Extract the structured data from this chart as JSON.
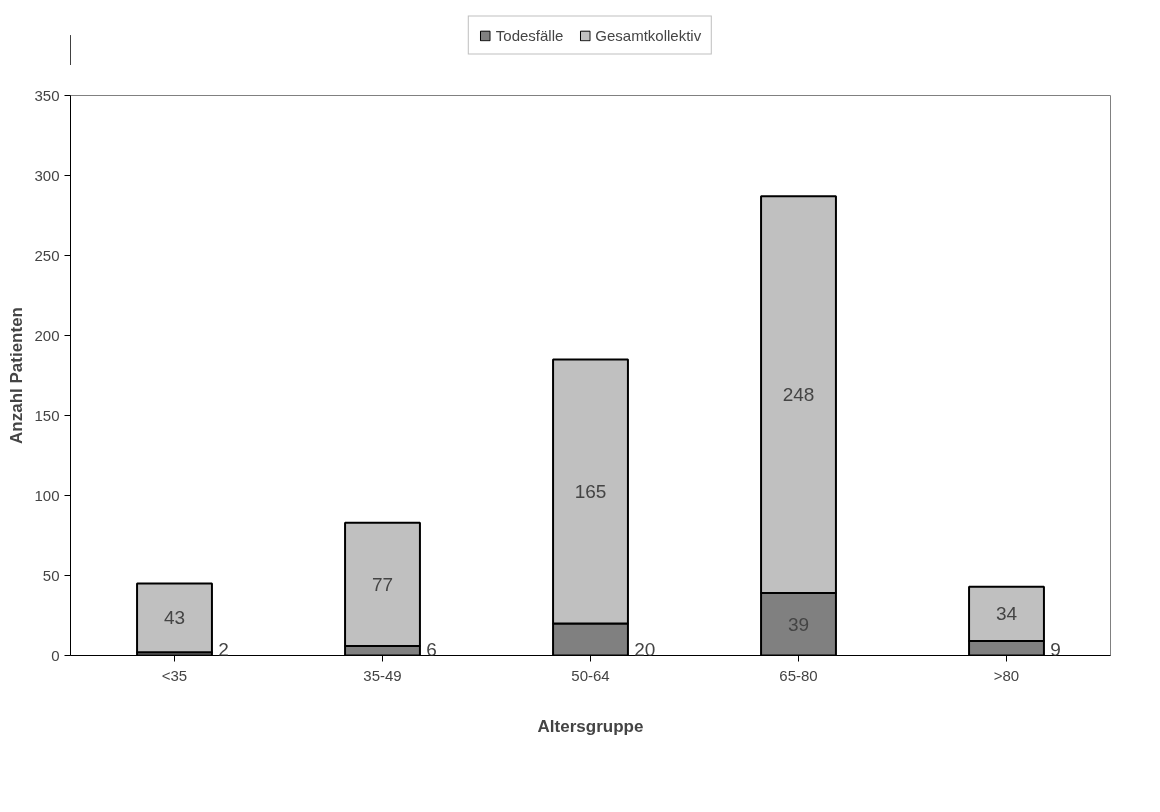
{
  "chart_data": {
    "type": "bar",
    "stacked": true,
    "categories": [
      "<35",
      "35-49",
      "50-64",
      "65-80",
      ">80"
    ],
    "series": [
      {
        "name": "Todesfälle",
        "color": "#808080",
        "values": [
          2,
          6,
          20,
          39,
          9
        ]
      },
      {
        "name": "Gesamtkollektiv",
        "color": "#c0c0c0",
        "values": [
          43,
          77,
          165,
          248,
          34
        ]
      }
    ],
    "xlabel": "Altersgruppe",
    "ylabel": "Anzahl Patienten",
    "ylim": [
      0,
      350
    ],
    "yticks": [
      0,
      50,
      100,
      150,
      200,
      250,
      300,
      350
    ],
    "data_labels": true,
    "legend": "top",
    "grid": false
  }
}
